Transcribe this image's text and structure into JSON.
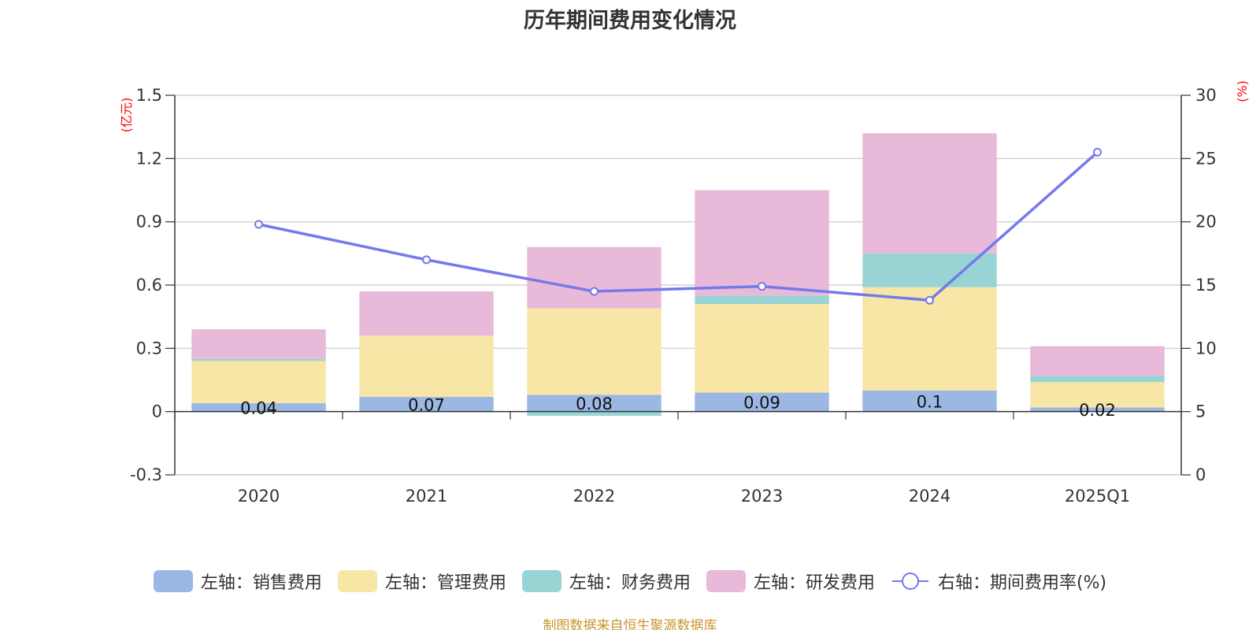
{
  "chart_data": {
    "type": "bar",
    "title": "历年期间费用变化情况",
    "categories": [
      "2020",
      "2021",
      "2022",
      "2023",
      "2024",
      "2025Q1"
    ],
    "series": [
      {
        "name": "左轴：销售费用",
        "axis": "left",
        "kind": "stacked-bar",
        "color": "#9bb7e3",
        "values": [
          0.04,
          0.07,
          0.08,
          0.09,
          0.1,
          0.02
        ]
      },
      {
        "name": "左轴：管理费用",
        "axis": "left",
        "kind": "stacked-bar",
        "color": "#f8e6a6",
        "values": [
          0.2,
          0.29,
          0.41,
          0.42,
          0.49,
          0.12
        ]
      },
      {
        "name": "左轴：财务费用",
        "axis": "left",
        "kind": "stacked-bar",
        "color": "#98d4d4",
        "values": [
          0.01,
          0.0,
          -0.02,
          0.04,
          0.16,
          0.03
        ]
      },
      {
        "name": "左轴：研发费用",
        "axis": "left",
        "kind": "stacked-bar",
        "color": "#e8b9d9",
        "values": [
          0.14,
          0.21,
          0.29,
          0.5,
          0.57,
          0.14
        ]
      },
      {
        "name": "右轴：期间费用率(%)",
        "axis": "right",
        "kind": "line",
        "color": "#7479ec",
        "values": [
          19.8,
          17.0,
          14.5,
          14.9,
          13.8,
          25.5
        ]
      }
    ],
    "data_labels": [
      "0.04",
      "0.07",
      "0.08",
      "0.09",
      "0.1",
      "0.02"
    ],
    "left_axis": {
      "unit": "(亿元)",
      "ylim": [
        -0.3,
        1.5
      ],
      "ticks": [
        "-0.3",
        "0",
        "0.3",
        "0.6",
        "0.9",
        "1.2",
        "1.5"
      ],
      "tick_values": [
        -0.3,
        0,
        0.3,
        0.6,
        0.9,
        1.2,
        1.5
      ]
    },
    "right_axis": {
      "unit": "(%)",
      "ylim": [
        0,
        30
      ],
      "ticks": [
        "0",
        "5",
        "10",
        "15",
        "20",
        "25",
        "30"
      ],
      "tick_values": [
        0,
        5,
        10,
        15,
        20,
        25,
        30
      ]
    },
    "grid": true,
    "legend_position": "bottom"
  },
  "source_note": "制图数据来自恒生聚源数据库"
}
